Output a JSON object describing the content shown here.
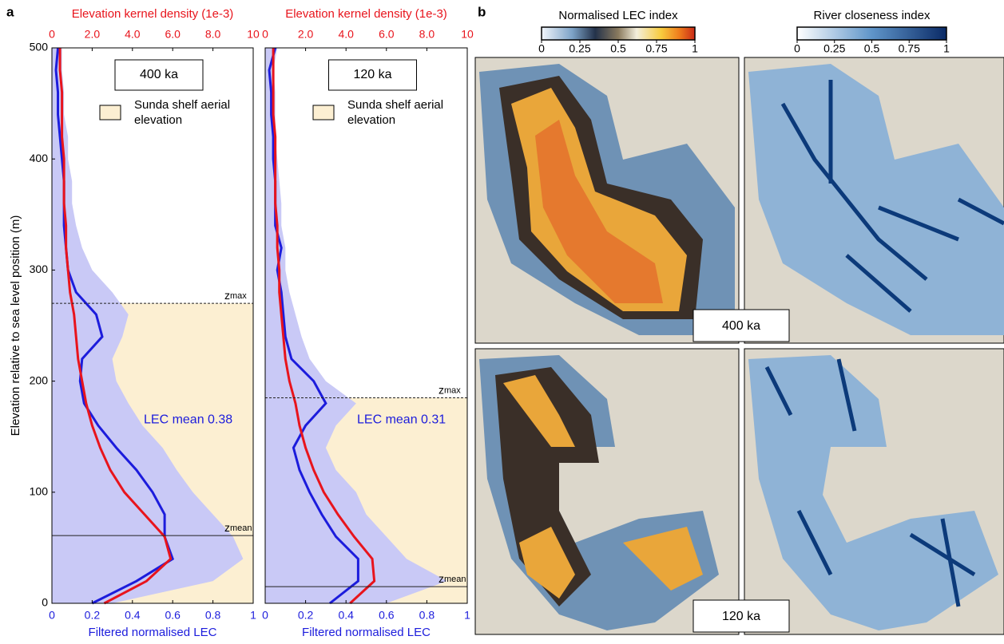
{
  "panel_labels": [
    "a",
    "b"
  ],
  "chart_data": [
    {
      "type": "line",
      "ylabel": "Elevation relative to sea level position (m)",
      "xlabel": "Filtered normalised LEC",
      "x2label": "Elevation kernel density (1e-3)",
      "xlim": [
        0,
        1
      ],
      "xticks": [
        0,
        0.2,
        0.4,
        0.6,
        0.8,
        1
      ],
      "x2lim": [
        0,
        10
      ],
      "x2ticks": [
        0,
        {
          "value": 2,
          "label": "2.0"
        },
        {
          "value": 4,
          "label": "4.0"
        },
        {
          "value": 6,
          "label": "6.0"
        },
        {
          "value": 8,
          "label": "8.0"
        },
        10
      ],
      "ylim": [
        0,
        500
      ],
      "yticks": [
        0,
        100,
        200,
        300,
        400,
        500
      ],
      "y": [
        0,
        20,
        40,
        60,
        80,
        100,
        120,
        140,
        160,
        180,
        200,
        220,
        240,
        260,
        280,
        300,
        320,
        340,
        360,
        380,
        400,
        420,
        440,
        460,
        480,
        500
      ],
      "series": [
        {
          "style": "area",
          "color": "#c9c9f6",
          "values": [
            0.3,
            0.8,
            0.95,
            0.9,
            0.8,
            0.7,
            0.62,
            0.55,
            0.45,
            0.38,
            0.32,
            0.3,
            0.35,
            0.38,
            0.3,
            0.2,
            0.15,
            0.12,
            0.1,
            0.1,
            0.08,
            0.08,
            0.06,
            0.06,
            0.05,
            0.05
          ]
        },
        {
          "style": "line",
          "color": "#1c1cdc",
          "values": [
            0.2,
            0.42,
            0.6,
            0.56,
            0.56,
            0.5,
            0.42,
            0.32,
            0.23,
            0.16,
            0.14,
            0.15,
            0.25,
            0.22,
            0.12,
            0.08,
            0.07,
            0.06,
            0.06,
            0.06,
            0.05,
            0.04,
            0.03,
            0.03,
            0.02,
            0.03
          ]
        },
        {
          "style": "line",
          "axis": "x2",
          "color": "#e8141c",
          "values": [
            2.6,
            4.7,
            5.9,
            5.6,
            4.6,
            3.6,
            2.9,
            2.4,
            2.0,
            1.7,
            1.5,
            1.3,
            1.2,
            1.1,
            0.9,
            0.8,
            0.7,
            0.7,
            0.6,
            0.6,
            0.6,
            0.5,
            0.5,
            0.5,
            0.4,
            0.4
          ]
        }
      ],
      "hlines": [
        {
          "value": 270,
          "style": "dashed",
          "label": "z",
          "sub": "max"
        },
        {
          "value": 61,
          "style": "solid",
          "label": "z",
          "sub": "mean"
        }
      ],
      "shade": {
        "color": "#fcefd2",
        "label": [
          "Sunda shelf aerial",
          "elevation"
        ]
      },
      "annotation": "LEC mean 0.38",
      "period": "400 ka"
    },
    {
      "type": "line",
      "xlabel": "Filtered normalised LEC",
      "x2label": "Elevation kernel density (1e-3)",
      "xlim": [
        0,
        1
      ],
      "xticks": [
        0,
        0.2,
        0.4,
        0.6,
        0.8,
        1
      ],
      "x2lim": [
        0,
        10
      ],
      "x2ticks": [
        0,
        {
          "value": 2,
          "label": "2.0"
        },
        {
          "value": 4,
          "label": "4.0"
        },
        {
          "value": 6,
          "label": "6.0"
        },
        {
          "value": 8,
          "label": "8.0"
        },
        10
      ],
      "ylim": [
        0,
        500
      ],
      "y": [
        0,
        20,
        40,
        60,
        80,
        100,
        120,
        140,
        160,
        180,
        200,
        220,
        240,
        260,
        280,
        300,
        320,
        340,
        360,
        380,
        400,
        420,
        440,
        460,
        480,
        500
      ],
      "series": [
        {
          "style": "area",
          "color": "#c9c9f6",
          "values": [
            0.6,
            0.9,
            0.7,
            0.6,
            0.5,
            0.45,
            0.35,
            0.3,
            0.35,
            0.45,
            0.3,
            0.22,
            0.18,
            0.15,
            0.12,
            0.1,
            0.1,
            0.08,
            0.08,
            0.07,
            0.06,
            0.05,
            0.05,
            0.05,
            0.04,
            0.06
          ]
        },
        {
          "style": "line",
          "color": "#1c1cdc",
          "values": [
            0.32,
            0.46,
            0.46,
            0.35,
            0.28,
            0.22,
            0.17,
            0.14,
            0.2,
            0.3,
            0.24,
            0.13,
            0.1,
            0.09,
            0.08,
            0.06,
            0.08,
            0.05,
            0.05,
            0.05,
            0.04,
            0.04,
            0.03,
            0.03,
            0.02,
            0.05
          ]
        },
        {
          "style": "line",
          "axis": "x2",
          "color": "#e8141c",
          "values": [
            4.2,
            5.4,
            5.3,
            4.4,
            3.6,
            2.9,
            2.4,
            2.0,
            1.7,
            1.5,
            1.2,
            1.0,
            0.9,
            0.8,
            0.7,
            0.7,
            0.6,
            0.6,
            0.5,
            0.5,
            0.5,
            0.5,
            0.4,
            0.4,
            0.4,
            0.4
          ]
        }
      ],
      "hlines": [
        {
          "value": 185,
          "style": "dashed",
          "label": "z",
          "sub": "max"
        },
        {
          "value": 15,
          "style": "solid",
          "label": "z",
          "sub": "mean"
        }
      ],
      "shade": {
        "color": "#fcefd2",
        "label": [
          "Sunda shelf aerial",
          "elevation"
        ]
      },
      "annotation": "LEC mean 0.31",
      "period": "120 ka"
    }
  ],
  "colorbars": [
    {
      "title": "Normalised LEC index",
      "ticks": [
        0,
        0.25,
        0.5,
        0.75,
        1
      ]
    },
    {
      "title": "River closeness index",
      "ticks": [
        0,
        0.25,
        0.5,
        0.75,
        1
      ]
    }
  ],
  "map_labels": [
    "400 ka",
    "120 ka"
  ]
}
